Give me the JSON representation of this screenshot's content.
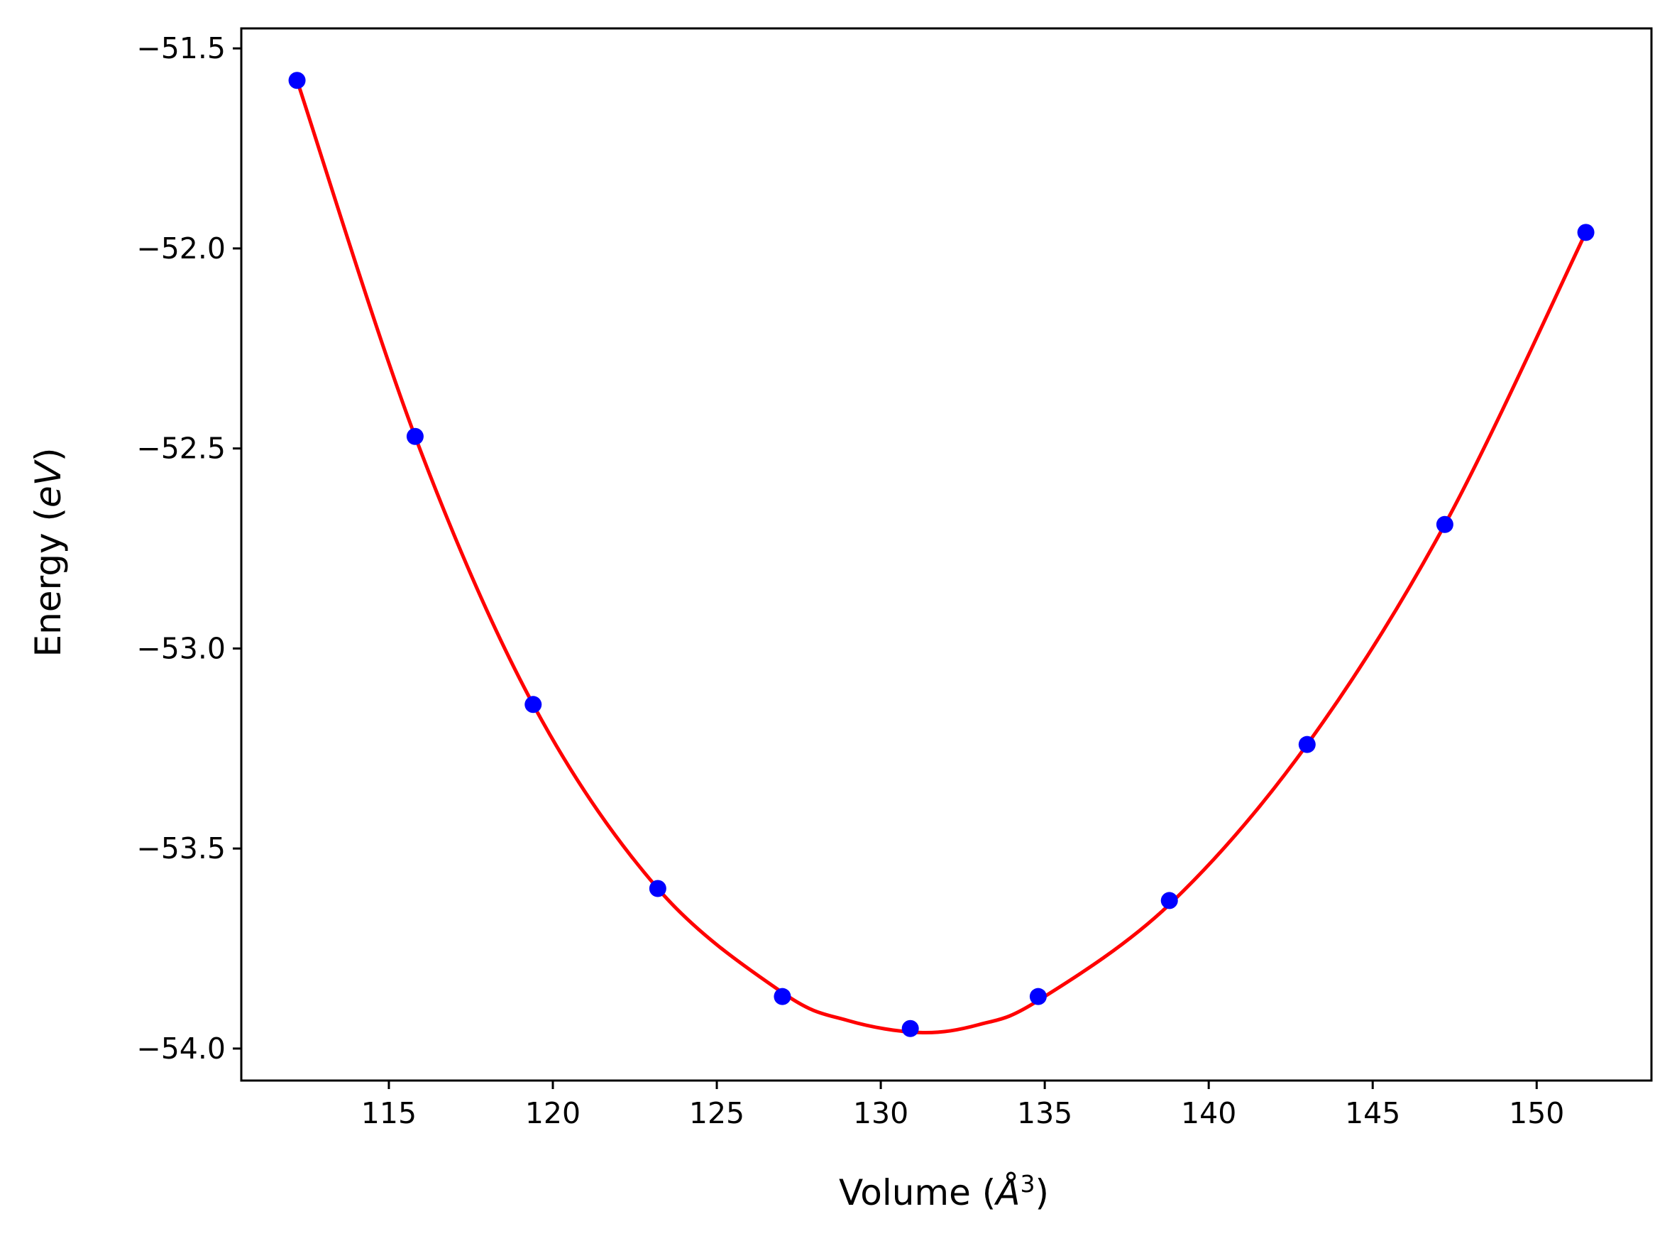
{
  "chart_data": {
    "type": "scatter",
    "xlabel": "Volume",
    "xlabel_unit": "Å",
    "xlabel_unit_exponent": "3",
    "ylabel": "Energy",
    "ylabel_unit": "eV",
    "xlim": [
      110.5,
      153.5
    ],
    "ylim": [
      -54.08,
      -51.45
    ],
    "xticks": [
      115,
      120,
      125,
      130,
      135,
      140,
      145,
      150
    ],
    "yticks": [
      -51.5,
      -52.0,
      -52.5,
      -53.0,
      -53.5,
      -54.0
    ],
    "xtick_labels": [
      "115",
      "120",
      "125",
      "130",
      "135",
      "140",
      "145",
      "150"
    ],
    "ytick_labels": [
      "−51.5",
      "−52.0",
      "−52.5",
      "−53.0",
      "−53.5",
      "−54.0"
    ],
    "grid": false,
    "series": [
      {
        "kind": "points",
        "color": "#0000ff",
        "x": [
          112.2,
          115.8,
          119.4,
          123.2,
          127.0,
          130.9,
          134.8,
          138.8,
          143.0,
          147.2,
          151.5
        ],
        "y": [
          -51.58,
          -52.47,
          -53.14,
          -53.6,
          -53.87,
          -53.95,
          -53.87,
          -53.63,
          -53.24,
          -52.69,
          -51.96
        ]
      },
      {
        "kind": "fit-line",
        "color": "#ff0000",
        "x": [
          112.2,
          115.8,
          119.4,
          123.2,
          127.0,
          129.0,
          131.2,
          133.0,
          134.8,
          138.8,
          143.0,
          147.2,
          151.5
        ],
        "y": [
          -51.58,
          -52.47,
          -53.14,
          -53.6,
          -53.86,
          -53.93,
          -53.96,
          -53.94,
          -53.88,
          -53.64,
          -53.24,
          -52.69,
          -51.96
        ]
      }
    ]
  }
}
